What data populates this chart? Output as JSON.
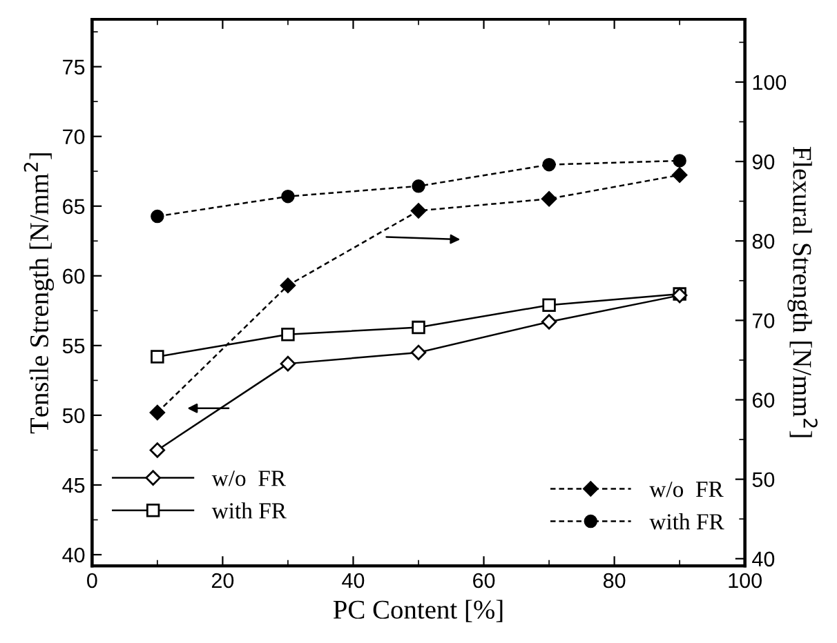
{
  "chart_data": {
    "type": "line",
    "xlabel": "PC Content [%]",
    "ylabel": "Tensile Strength [N/mm$^{2}$]",
    "y2label": "Flexural Strength [N/mm$^{2}$]",
    "x": [
      10,
      30,
      50,
      70,
      90
    ],
    "series": [
      {
        "name": "w/o  FR",
        "color": "#000000",
        "marker": "diamond",
        "line_style": "solid",
        "values": [
          47.5,
          53.7,
          54.5,
          56.7,
          58.6
        ]
      },
      {
        "name": "with FR",
        "color": "#000000",
        "marker": "square",
        "line_style": "solid",
        "values": [
          54.2,
          55.8,
          56.3,
          57.9,
          58.7
        ]
      },
      {
        "name": "w/o  FR",
        "color": "#000000",
        "marker": "diamond",
        "line_style": "dashed",
        "axis": "y2",
        "values": [
          58.4,
          74.4,
          83.8,
          85.3,
          88.3
        ]
      },
      {
        "name": "with FR",
        "color": "#000000",
        "marker": "circle",
        "line_style": "dashed",
        "axis": "y2",
        "values": [
          83.1,
          85.6,
          86.9,
          89.6,
          90.1
        ]
      }
    ],
    "xlim": [
      0,
      100
    ],
    "xticks": [
      0,
      20,
      40,
      60,
      80,
      100
    ],
    "ylim": [
      39.2,
      78.4
    ],
    "yticks": [
      40,
      45,
      50,
      55,
      60,
      65,
      70,
      75
    ],
    "y2lim": [
      39.1,
      107.9
    ],
    "y2ticks": [
      40,
      50,
      60,
      70,
      80,
      90,
      100
    ],
    "grid": false,
    "legend": "bottom"
  }
}
